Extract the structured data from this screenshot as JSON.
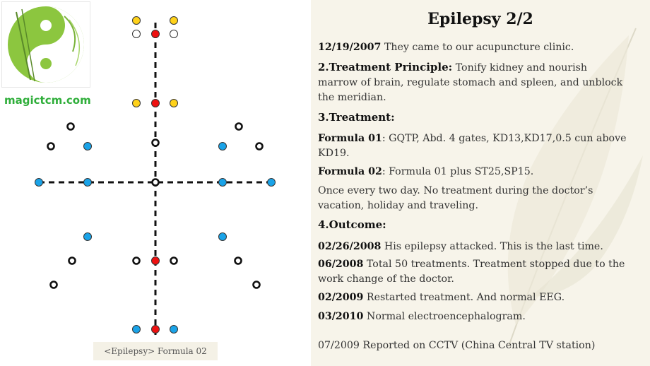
{
  "logo": {
    "site": "magictcm.com"
  },
  "diagram": {
    "caption": "<Epilepsy> Formula 02"
  },
  "colors": {
    "yellow": "#ffd21a",
    "red": "#ee1111",
    "blue": "#1aa3e8",
    "black": "#111111"
  },
  "panel": {
    "title": "Epilepsy 2/2",
    "p1_date": "12/19/2007",
    "p1_text": " They came to our acupuncture clinic.",
    "p2_head": "2.Treatment Principle:",
    "p2_text": " Tonify kidney and nourish marrow of brain, regulate stomach and spleen, and unblock the meridian.",
    "p3_head": "3.Treatment:",
    "p4_label": "Formula 01",
    "p4_text": ": GQTP, Abd. 4 gates, KD13,KD17,0.5 cun above KD19.",
    "p5_label": "Formula 02",
    "p5_text": ": Formula 01 plus ST25,SP15.",
    "p6_text": "Once every two day. No treatment during the doctor’s vacation, holiday and traveling.",
    "p7_head": "4.Outcome:",
    "p8_date": "02/26/2008",
    "p8_text": " His epilepsy attacked. This is the last time.",
    "p9_date": "06/2008",
    "p9_text": "  Total 50 treatments. Treatment stopped due to the work change of the doctor.",
    "p10_date": "02/2009",
    "p10_text": " Restarted treatment. And normal EEG.",
    "p11_date": "03/2010",
    "p11_text": " Normal electroencephalogram.",
    "p12_text": "07/2009 Reported on CCTV (China Central TV station)"
  }
}
